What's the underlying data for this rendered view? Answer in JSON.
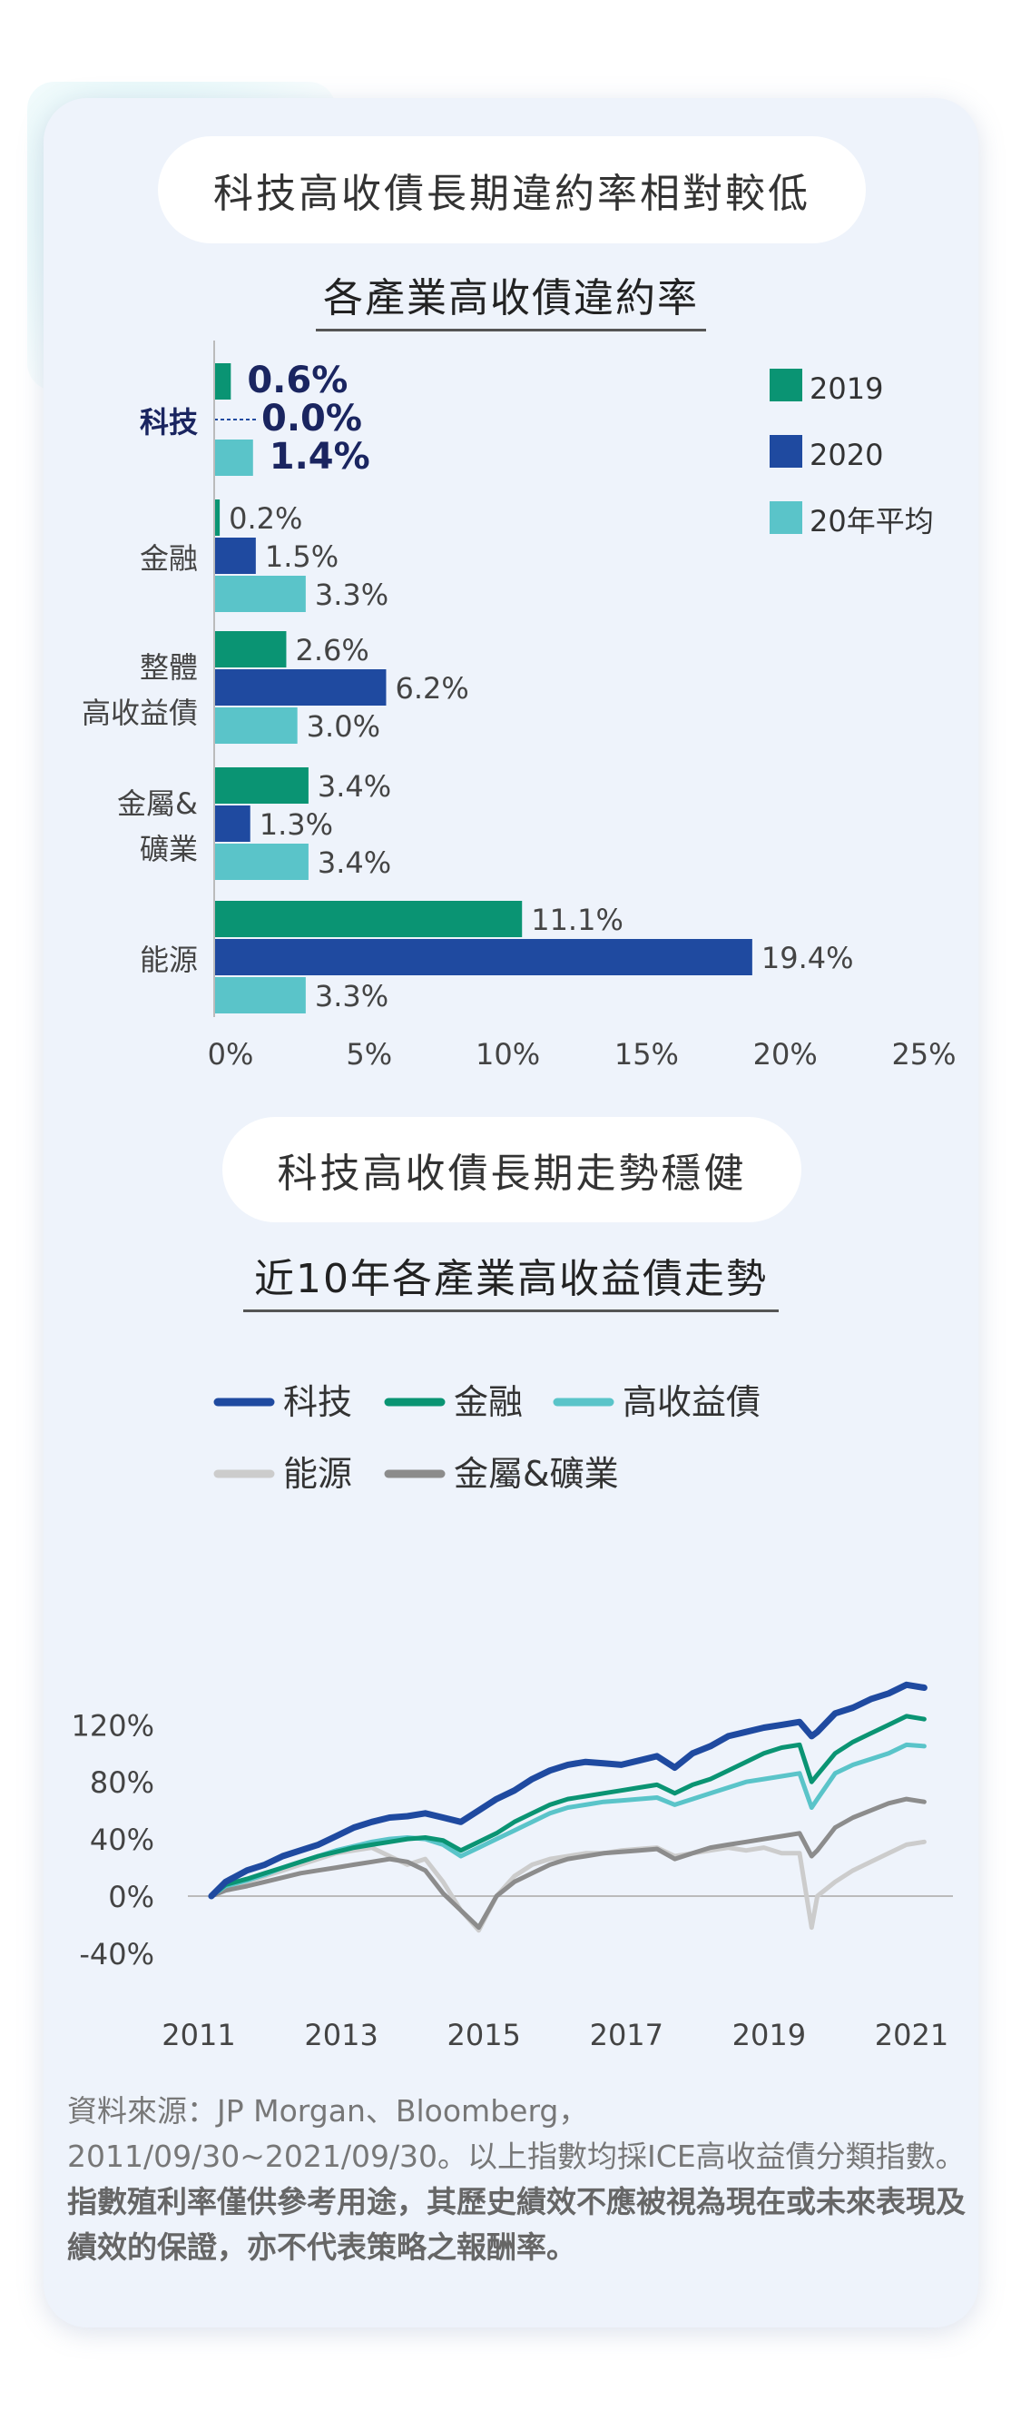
{
  "section1": {
    "pill_title": "科技高收債長期違約率相對較低",
    "chart_title": "各產業高收債違約率"
  },
  "section2": {
    "pill_title": "科技高收債長期走勢穩健",
    "chart_title": "近10年各產業高收益債走勢"
  },
  "footnote": {
    "normal": "資料來源：JP Morgan、Bloomberg，2011/09/30~2021/09/30。以上指數均採ICE高收益債分類指數。",
    "bold": "指數殖利率僅供參考用途，其歷史績效不應被視為現在或未來表現及績效的保證，亦不代表策略之報酬率。"
  },
  "chart_data": [
    {
      "type": "bar",
      "orientation": "horizontal",
      "title": "各產業高收債違約率",
      "categories": [
        "科技",
        "金融",
        "整體高收益債",
        "金屬&礦業",
        "能源"
      ],
      "category_lines": [
        [
          "科技"
        ],
        [
          "金融"
        ],
        [
          "整體",
          "高收益債"
        ],
        [
          "金屬&",
          "礦業"
        ],
        [
          "能源"
        ]
      ],
      "series": [
        {
          "name": "2019",
          "color": "#0a9473",
          "values": [
            0.6,
            0.2,
            2.6,
            3.4,
            11.1
          ],
          "labels": [
            "0.6%",
            "0.2%",
            "2.6%",
            "3.4%",
            "11.1%"
          ]
        },
        {
          "name": "2020",
          "color": "#1f4aa0",
          "values": [
            0.0,
            1.5,
            6.2,
            1.3,
            19.4
          ],
          "labels": [
            "0.0%",
            "1.5%",
            "6.2%",
            "1.3%",
            "19.4%"
          ]
        },
        {
          "name": "20年平均",
          "color": "#5ac4c9",
          "values": [
            1.4,
            3.3,
            3.0,
            3.4,
            3.3
          ],
          "labels": [
            "1.4%",
            "3.3%",
            "3.0%",
            "3.4%",
            "3.3%"
          ]
        }
      ],
      "highlight_category": "科技",
      "xlim": [
        0,
        25
      ],
      "xticks": [
        "0%",
        "5%",
        "10%",
        "15%",
        "20%",
        "25%"
      ],
      "legend_position": "top-right"
    },
    {
      "type": "line",
      "title": "近10年各產業高收益債走勢",
      "x_range": [
        2011.75,
        2021.75
      ],
      "xticks": [
        {
          "value": 2011,
          "label": "2011"
        },
        {
          "value": 2013,
          "label": "2013"
        },
        {
          "value": 2015,
          "label": "2015"
        },
        {
          "value": 2017,
          "label": "2017"
        },
        {
          "value": 2019,
          "label": "2019"
        },
        {
          "value": 2021,
          "label": "2021"
        }
      ],
      "ylim": [
        -40,
        150
      ],
      "yticks": [
        {
          "value": 120,
          "label": "120%"
        },
        {
          "value": 80,
          "label": "80%"
        },
        {
          "value": 40,
          "label": "40%"
        },
        {
          "value": 0,
          "label": "0%"
        },
        {
          "value": -40,
          "label": "-40%"
        }
      ],
      "legend_position": "top-left",
      "series": [
        {
          "name": "科技",
          "color": "#1f4aa0",
          "x": [
            2011.75,
            2011.95,
            2012.25,
            2012.5,
            2012.75,
            2013.0,
            2013.25,
            2013.5,
            2013.75,
            2014.0,
            2014.25,
            2014.5,
            2014.75,
            2015.0,
            2015.25,
            2015.5,
            2015.75,
            2016.0,
            2016.25,
            2016.5,
            2016.75,
            2017.0,
            2017.25,
            2017.5,
            2017.75,
            2018.0,
            2018.25,
            2018.5,
            2018.75,
            2019.0,
            2019.25,
            2019.5,
            2019.75,
            2020.0,
            2020.17,
            2020.25,
            2020.5,
            2020.75,
            2021.0,
            2021.25,
            2021.5,
            2021.75
          ],
          "y": [
            0,
            10,
            18,
            22,
            28,
            32,
            36,
            42,
            48,
            52,
            55,
            56,
            58,
            55,
            52,
            60,
            68,
            74,
            82,
            88,
            92,
            94,
            93,
            92,
            95,
            98,
            90,
            100,
            105,
            112,
            115,
            118,
            120,
            122,
            112,
            115,
            128,
            132,
            138,
            142,
            148,
            146
          ]
        },
        {
          "name": "金融",
          "color": "#0a9473",
          "x": [
            2011.75,
            2011.95,
            2012.25,
            2012.5,
            2012.75,
            2013.0,
            2013.25,
            2013.5,
            2013.75,
            2014.0,
            2014.25,
            2014.5,
            2014.75,
            2015.0,
            2015.25,
            2015.5,
            2015.75,
            2016.0,
            2016.25,
            2016.5,
            2016.75,
            2017.0,
            2017.25,
            2017.5,
            2017.75,
            2018.0,
            2018.25,
            2018.5,
            2018.75,
            2019.0,
            2019.25,
            2019.5,
            2019.75,
            2020.0,
            2020.17,
            2020.25,
            2020.5,
            2020.75,
            2021.0,
            2021.25,
            2021.5,
            2021.75
          ],
          "y": [
            0,
            8,
            12,
            16,
            20,
            24,
            28,
            31,
            34,
            36,
            38,
            40,
            41,
            39,
            32,
            38,
            44,
            52,
            58,
            64,
            68,
            70,
            72,
            74,
            76,
            78,
            72,
            78,
            82,
            88,
            94,
            100,
            104,
            106,
            80,
            85,
            100,
            108,
            114,
            120,
            126,
            124
          ]
        },
        {
          "name": "高收益債",
          "color": "#5ac4c9",
          "x": [
            2011.75,
            2011.95,
            2012.25,
            2012.5,
            2012.75,
            2013.0,
            2013.25,
            2013.5,
            2013.75,
            2014.0,
            2014.25,
            2014.5,
            2014.75,
            2015.0,
            2015.25,
            2015.5,
            2015.75,
            2016.0,
            2016.25,
            2016.5,
            2016.75,
            2017.0,
            2017.25,
            2017.5,
            2017.75,
            2018.0,
            2018.25,
            2018.5,
            2018.75,
            2019.0,
            2019.25,
            2019.5,
            2019.75,
            2020.0,
            2020.17,
            2020.25,
            2020.5,
            2020.75,
            2021.0,
            2021.25,
            2021.5,
            2021.75
          ],
          "y": [
            0,
            7,
            11,
            15,
            20,
            24,
            28,
            32,
            35,
            38,
            40,
            41,
            40,
            36,
            28,
            34,
            40,
            46,
            52,
            58,
            62,
            64,
            66,
            67,
            68,
            69,
            64,
            68,
            72,
            76,
            80,
            82,
            84,
            86,
            62,
            68,
            86,
            92,
            96,
            100,
            106,
            105
          ]
        },
        {
          "name": "能源",
          "color": "#cccccc",
          "x": [
            2011.75,
            2011.95,
            2012.25,
            2012.5,
            2012.75,
            2013.0,
            2013.25,
            2013.5,
            2013.75,
            2014.0,
            2014.25,
            2014.5,
            2014.75,
            2015.0,
            2015.25,
            2015.5,
            2015.75,
            2016.0,
            2016.25,
            2016.5,
            2016.75,
            2017.0,
            2017.25,
            2017.5,
            2017.75,
            2018.0,
            2018.25,
            2018.5,
            2018.75,
            2019.0,
            2019.25,
            2019.5,
            2019.75,
            2020.0,
            2020.17,
            2020.25,
            2020.5,
            2020.75,
            2021.0,
            2021.25,
            2021.5,
            2021.75
          ],
          "y": [
            0,
            5,
            10,
            14,
            18,
            22,
            26,
            30,
            32,
            34,
            28,
            22,
            26,
            10,
            -10,
            -24,
            0,
            14,
            22,
            26,
            28,
            30,
            30,
            32,
            33,
            34,
            28,
            30,
            32,
            34,
            32,
            34,
            30,
            30,
            -22,
            0,
            10,
            18,
            24,
            30,
            36,
            38
          ]
        },
        {
          "name": "金屬&礦業",
          "color": "#8c8c8c",
          "x": [
            2011.75,
            2011.95,
            2012.25,
            2012.5,
            2012.75,
            2013.0,
            2013.25,
            2013.5,
            2013.75,
            2014.0,
            2014.25,
            2014.5,
            2014.75,
            2015.0,
            2015.25,
            2015.5,
            2015.75,
            2016.0,
            2016.25,
            2016.5,
            2016.75,
            2017.0,
            2017.25,
            2017.5,
            2017.75,
            2018.0,
            2018.25,
            2018.5,
            2018.75,
            2019.0,
            2019.25,
            2019.5,
            2019.75,
            2020.0,
            2020.17,
            2020.25,
            2020.5,
            2020.75,
            2021.0,
            2021.25,
            2021.5,
            2021.75
          ],
          "y": [
            0,
            4,
            7,
            10,
            13,
            16,
            18,
            20,
            22,
            24,
            26,
            24,
            18,
            2,
            -10,
            -22,
            0,
            10,
            16,
            22,
            26,
            28,
            30,
            31,
            32,
            33,
            26,
            30,
            34,
            36,
            38,
            40,
            42,
            44,
            28,
            32,
            48,
            55,
            60,
            65,
            68,
            66
          ]
        }
      ]
    }
  ]
}
